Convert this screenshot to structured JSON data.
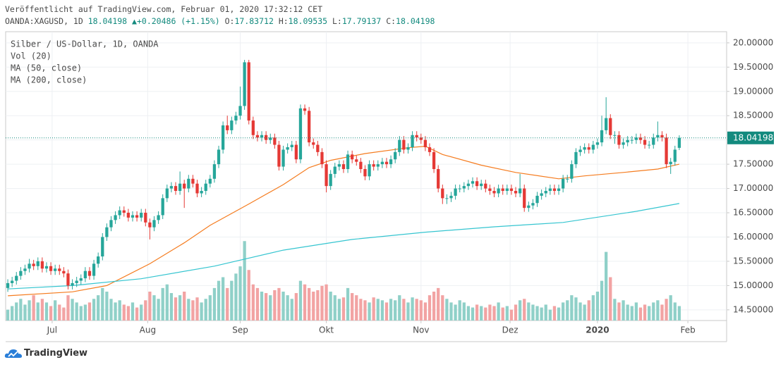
{
  "header": {
    "published": "Veröffentlicht auf TradingView.com, Februar 01, 2020 17:32:12 CET",
    "symbol": "OANDA:XAGUSD, 1D",
    "last": "18.04198",
    "change": "+0.20486 (+1.15%)",
    "o_label": "O:",
    "o": "17.83712",
    "h_label": "H:",
    "h": "18.09535",
    "l_label": "L:",
    "l": "17.79137",
    "c_label": "C:",
    "c": "18.04198"
  },
  "chart_data": {
    "type": "candlestick",
    "title": "Silber / US-Dollar, 1D, OANDA",
    "up_color": "#26a69a",
    "down_color": "#e53935",
    "candles": {
      "open": [
        14.95,
        15.05,
        15.1,
        15.2,
        15.3,
        15.35,
        15.45,
        15.4,
        15.5,
        15.35,
        15.4,
        15.3,
        15.35,
        15.3,
        15.25,
        15.0,
        15.05,
        15.1,
        15.15,
        15.3,
        15.2,
        15.45,
        15.6,
        16.0,
        16.2,
        16.35,
        16.45,
        16.55,
        16.5,
        16.4,
        16.45,
        16.4,
        16.5,
        16.3,
        16.2,
        16.35,
        16.45,
        16.8,
        17.0,
        17.05,
        16.95,
        17.1,
        17.0,
        17.2,
        17.1,
        16.9,
        16.95,
        17.1,
        17.2,
        17.5,
        17.8,
        18.3,
        18.2,
        18.4,
        18.5,
        18.7,
        19.6,
        18.4,
        18.1,
        18.05,
        18.1,
        18.0,
        18.05,
        17.9,
        17.45,
        17.8,
        17.85,
        17.9,
        17.6,
        18.65,
        18.6,
        17.95,
        17.9,
        17.75,
        17.5,
        17.05,
        17.3,
        17.45,
        17.5,
        17.4,
        17.7,
        17.6,
        17.55,
        17.4,
        17.25,
        17.5,
        17.45,
        17.5,
        17.55,
        17.5,
        17.6,
        17.75,
        18.0,
        17.8,
        17.85,
        18.1,
        18.05,
        18.0,
        17.85,
        17.75,
        17.4,
        17.0,
        16.8,
        16.8,
        16.85,
        17.0,
        17.0,
        17.05,
        17.1,
        17.15,
        17.05,
        17.1,
        17.0,
        16.95,
        16.9,
        17.0,
        16.95,
        17.0,
        16.95,
        16.9,
        17.0,
        16.6,
        16.65,
        16.7,
        16.85,
        16.9,
        16.95,
        17.0,
        16.95,
        17.0,
        17.2,
        17.2,
        17.5,
        17.75,
        17.8,
        17.85,
        17.8,
        17.9,
        17.95,
        18.2,
        18.45,
        18.1,
        18.1,
        17.9,
        17.95,
        18.0,
        18.0,
        18.05,
        18.0,
        17.9,
        17.9,
        18.05,
        18.1,
        18.05,
        17.5,
        17.55,
        17.83712
      ],
      "high": [
        15.13,
        15.18,
        15.28,
        15.38,
        15.43,
        15.55,
        15.53,
        15.58,
        15.58,
        15.48,
        15.48,
        15.43,
        15.43,
        15.38,
        15.33,
        15.13,
        15.18,
        15.23,
        15.38,
        15.38,
        15.53,
        15.68,
        16.08,
        16.28,
        16.43,
        16.53,
        16.63,
        16.63,
        16.58,
        16.53,
        16.53,
        16.58,
        16.58,
        16.38,
        16.43,
        16.53,
        16.88,
        17.08,
        17.13,
        17.13,
        17.35,
        17.18,
        17.28,
        17.28,
        17.18,
        17.03,
        17.18,
        17.28,
        17.58,
        17.88,
        18.38,
        18.5,
        18.48,
        18.58,
        19.1,
        19.65,
        19.65,
        18.48,
        18.18,
        18.18,
        18.18,
        18.13,
        18.13,
        17.98,
        17.88,
        17.93,
        17.98,
        17.98,
        18.73,
        18.73,
        18.68,
        18.03,
        17.98,
        17.83,
        17.58,
        17.38,
        17.53,
        17.58,
        17.58,
        17.78,
        17.78,
        17.68,
        17.63,
        17.48,
        17.58,
        17.58,
        17.58,
        17.63,
        17.63,
        17.68,
        17.83,
        18.08,
        18.08,
        17.93,
        18.18,
        18.18,
        18.13,
        18.08,
        17.93,
        17.83,
        17.48,
        17.08,
        16.88,
        16.93,
        17.08,
        17.08,
        17.13,
        17.18,
        17.23,
        17.23,
        17.18,
        17.18,
        17.08,
        17.03,
        17.08,
        17.08,
        17.08,
        17.08,
        17.03,
        17.3,
        17.08,
        16.73,
        16.78,
        16.93,
        16.98,
        17.03,
        17.08,
        17.08,
        17.08,
        17.28,
        17.28,
        17.58,
        17.83,
        17.88,
        17.93,
        17.93,
        17.98,
        18.03,
        18.5,
        18.88,
        18.53,
        18.18,
        18.18,
        18.03,
        18.08,
        18.08,
        18.13,
        18.13,
        18.08,
        17.98,
        18.13,
        18.38,
        18.18,
        18.13,
        17.63,
        17.88,
        18.09535
      ],
      "low": [
        14.87,
        14.97,
        15.02,
        15.12,
        15.22,
        15.27,
        15.32,
        15.32,
        15.27,
        15.27,
        15.22,
        15.22,
        15.22,
        15.17,
        14.92,
        14.92,
        14.97,
        15.02,
        15.07,
        15.12,
        15.12,
        15.37,
        15.52,
        15.92,
        16.12,
        16.27,
        16.37,
        16.42,
        16.32,
        16.32,
        16.32,
        16.32,
        16.22,
        15.95,
        16.12,
        16.27,
        16.37,
        16.72,
        16.92,
        16.87,
        16.87,
        16.6,
        16.92,
        17.02,
        16.82,
        16.82,
        16.87,
        17.02,
        17.12,
        17.42,
        17.72,
        18.12,
        18.12,
        18.32,
        18.42,
        18.62,
        18.32,
        18.02,
        17.97,
        17.97,
        17.92,
        17.92,
        17.82,
        17.37,
        17.37,
        17.72,
        17.77,
        17.52,
        17.52,
        18.52,
        17.87,
        17.82,
        17.67,
        17.42,
        16.92,
        16.97,
        17.22,
        17.37,
        17.32,
        17.32,
        17.52,
        17.47,
        17.32,
        17.17,
        17.17,
        17.37,
        17.37,
        17.42,
        17.42,
        17.42,
        17.52,
        17.67,
        17.72,
        17.72,
        17.77,
        17.97,
        17.92,
        17.77,
        17.67,
        17.32,
        16.92,
        16.68,
        16.68,
        16.72,
        16.77,
        16.92,
        16.92,
        16.97,
        17.02,
        16.97,
        16.97,
        16.92,
        16.87,
        16.82,
        16.82,
        16.87,
        16.87,
        16.87,
        16.82,
        16.82,
        16.52,
        16.52,
        16.57,
        16.62,
        16.77,
        16.82,
        16.87,
        16.87,
        16.87,
        16.92,
        17.12,
        17.12,
        17.42,
        17.67,
        17.72,
        17.72,
        17.72,
        17.82,
        17.87,
        18.12,
        18.02,
        17.92,
        17.82,
        17.82,
        17.87,
        17.92,
        17.92,
        17.92,
        17.82,
        17.82,
        17.82,
        17.97,
        17.97,
        17.42,
        17.3,
        17.47,
        17.79137
      ],
      "close": [
        15.05,
        15.1,
        15.2,
        15.3,
        15.35,
        15.45,
        15.4,
        15.5,
        15.35,
        15.4,
        15.3,
        15.35,
        15.3,
        15.25,
        15.0,
        15.05,
        15.1,
        15.15,
        15.3,
        15.2,
        15.45,
        15.6,
        16.0,
        16.2,
        16.35,
        16.45,
        16.55,
        16.5,
        16.4,
        16.45,
        16.4,
        16.5,
        16.3,
        16.2,
        16.35,
        16.45,
        16.8,
        17.0,
        17.05,
        16.95,
        17.1,
        17.0,
        17.2,
        17.1,
        16.9,
        16.95,
        17.1,
        17.2,
        17.5,
        17.8,
        18.3,
        18.2,
        18.4,
        18.5,
        18.7,
        19.6,
        18.4,
        18.1,
        18.05,
        18.1,
        18.0,
        18.05,
        17.9,
        17.45,
        17.8,
        17.85,
        17.9,
        17.6,
        18.65,
        18.6,
        17.95,
        17.9,
        17.75,
        17.5,
        17.05,
        17.3,
        17.45,
        17.5,
        17.4,
        17.7,
        17.6,
        17.55,
        17.4,
        17.25,
        17.5,
        17.45,
        17.5,
        17.55,
        17.5,
        17.6,
        17.75,
        18.0,
        17.8,
        17.85,
        18.1,
        18.05,
        18.0,
        17.85,
        17.75,
        17.4,
        17.0,
        16.8,
        16.8,
        16.85,
        17.0,
        17.0,
        17.05,
        17.1,
        17.15,
        17.05,
        17.1,
        17.0,
        16.95,
        16.9,
        17.0,
        16.95,
        17.0,
        16.95,
        16.9,
        17.0,
        16.6,
        16.65,
        16.7,
        16.85,
        16.9,
        16.95,
        17.0,
        16.95,
        17.0,
        17.2,
        17.2,
        17.5,
        17.75,
        17.8,
        17.85,
        17.8,
        17.9,
        17.95,
        18.2,
        18.45,
        18.1,
        18.1,
        17.9,
        17.95,
        18.0,
        18.0,
        18.05,
        18.0,
        17.9,
        17.9,
        18.05,
        18.1,
        18.05,
        17.5,
        17.55,
        17.8,
        18.04198
      ]
    },
    "volume": {
      "name": "Vol (20)",
      "up_color": "#8fd0c8",
      "down_color": "#f2a3a3",
      "ylim": [
        0,
        400
      ],
      "values": [
        15,
        20,
        25,
        30,
        22,
        28,
        35,
        25,
        30,
        25,
        20,
        28,
        22,
        18,
        35,
        30,
        25,
        20,
        22,
        25,
        30,
        35,
        45,
        40,
        30,
        25,
        28,
        22,
        20,
        25,
        18,
        22,
        28,
        40,
        35,
        30,
        45,
        50,
        38,
        32,
        35,
        40,
        30,
        28,
        32,
        25,
        30,
        35,
        45,
        55,
        60,
        45,
        55,
        65,
        75,
        110,
        70,
        50,
        45,
        40,
        38,
        35,
        42,
        45,
        40,
        35,
        30,
        38,
        55,
        50,
        45,
        40,
        42,
        48,
        50,
        40,
        35,
        30,
        32,
        45,
        38,
        35,
        30,
        28,
        25,
        32,
        30,
        28,
        25,
        30,
        28,
        35,
        30,
        25,
        32,
        30,
        28,
        25,
        35,
        40,
        45,
        35,
        30,
        25,
        22,
        28,
        25,
        20,
        18,
        22,
        20,
        18,
        22,
        20,
        25,
        18,
        20,
        15,
        22,
        28,
        30,
        25,
        22,
        20,
        18,
        22,
        15,
        20,
        18,
        25,
        28,
        35,
        32,
        25,
        22,
        28,
        35,
        40,
        55,
        95,
        60,
        30,
        25,
        28,
        22,
        20,
        25,
        18,
        22,
        20,
        25,
        28,
        22,
        30,
        35,
        25,
        20
      ]
    },
    "series": [
      {
        "name": "MA (50, close)",
        "color": "#f57c1f",
        "x": [
          0,
          15,
          23,
          33,
          41,
          47,
          56,
          64,
          70,
          75,
          83,
          93,
          97,
          101,
          110,
          118,
          128,
          134,
          143,
          151,
          156
        ],
        "values": [
          14.79,
          14.87,
          15.0,
          15.45,
          15.88,
          16.24,
          16.68,
          17.08,
          17.43,
          17.58,
          17.72,
          17.84,
          17.87,
          17.7,
          17.48,
          17.33,
          17.2,
          17.26,
          17.33,
          17.4,
          17.5
        ]
      },
      {
        "name": "MA (200, close)",
        "color": "#35c5d0",
        "x": [
          0,
          15,
          31,
          48,
          64,
          80,
          97,
          113,
          129,
          146,
          156
        ],
        "values": [
          14.93,
          15.0,
          15.14,
          15.4,
          15.73,
          15.95,
          16.1,
          16.21,
          16.3,
          16.53,
          16.69
        ]
      }
    ],
    "last_price": {
      "value": 18.04198,
      "label": "18.04198",
      "color": "#138a7e"
    },
    "xlim": [
      -0.5,
      167
    ],
    "xticks": [
      {
        "value": 10.3,
        "label": "Jul"
      },
      {
        "value": 32.5,
        "label": "Aug"
      },
      {
        "value": 54,
        "label": "Sep"
      },
      {
        "value": 74,
        "label": "Okt"
      },
      {
        "value": 96,
        "label": "Nov"
      },
      {
        "value": 116.7,
        "label": "Dez"
      },
      {
        "value": 137,
        "label": "2020",
        "bold": true
      },
      {
        "value": 158,
        "label": "Feb"
      }
    ],
    "ylim": [
      14.28,
      20.23
    ],
    "yticks": [
      {
        "value": 14.5,
        "label": "14.50000"
      },
      {
        "value": 15,
        "label": "15.00000"
      },
      {
        "value": 15.5,
        "label": "15.50000"
      },
      {
        "value": 16,
        "label": "16.00000"
      },
      {
        "value": 16.5,
        "label": "16.50000"
      },
      {
        "value": 17,
        "label": "17.00000"
      },
      {
        "value": 17.5,
        "label": "17.50000"
      },
      {
        "value": 18,
        "label": "18.00000"
      },
      {
        "value": 18.5,
        "label": "18.50000"
      },
      {
        "value": 19,
        "label": "19.00000"
      },
      {
        "value": 19.5,
        "label": "19.50000"
      },
      {
        "value": 20,
        "label": "20.00000"
      }
    ],
    "grid": true
  },
  "footer": {
    "brand": "TradingView"
  }
}
